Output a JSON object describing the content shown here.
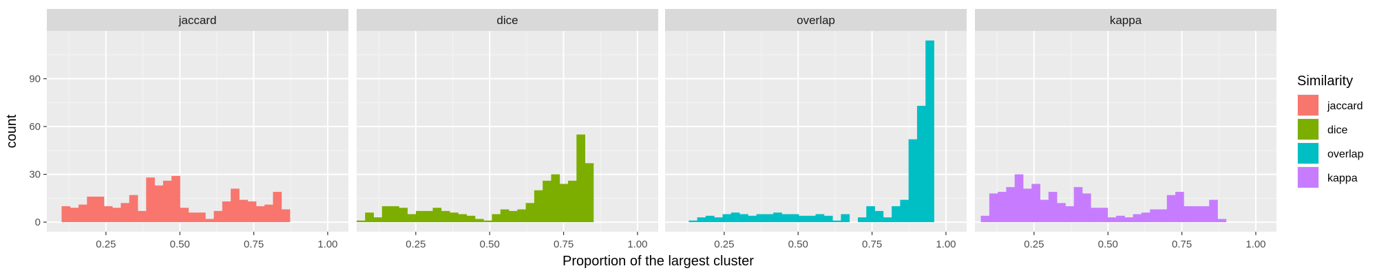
{
  "chart_data": {
    "type": "bar",
    "subtype": "histogram-facets",
    "xlabel": "Proportion of the largest cluster",
    "ylabel": "count",
    "xlim": [
      0.05,
      1.07
    ],
    "ylim": [
      -6,
      120
    ],
    "x_ticks": [
      0.25,
      0.5,
      0.75,
      1.0
    ],
    "x_tick_labels": [
      "0.25",
      "0.50",
      "0.75",
      "1.00"
    ],
    "y_ticks": [
      0,
      30,
      60,
      90
    ],
    "y_tick_labels": [
      "0",
      "30",
      "60",
      "90"
    ],
    "grid": true,
    "legend_position": "right",
    "legend_title": "Similarity",
    "panels": [
      {
        "name": "jaccard",
        "color": "#F8766D",
        "bin_start": 0.1,
        "bin_width": 0.0286,
        "counts": [
          10,
          9,
          11,
          16,
          16,
          10,
          9,
          12,
          17,
          7,
          28,
          23,
          26,
          29,
          9,
          6,
          6,
          2,
          7,
          13,
          21,
          14,
          13,
          10,
          11,
          19,
          8
        ]
      },
      {
        "name": "dice",
        "color": "#7CAE00",
        "bin_start": 0.05,
        "bin_width": 0.0286,
        "counts": [
          1,
          6,
          3,
          10,
          10,
          9,
          5,
          7,
          7,
          9,
          7,
          6,
          5,
          4,
          2,
          1,
          5,
          8,
          7,
          8,
          12,
          20,
          26,
          30,
          24,
          26,
          55,
          37
        ]
      },
      {
        "name": "overlap",
        "color": "#00BFC4",
        "bin_start": 0.13,
        "bin_width": 0.0286,
        "counts": [
          1,
          3,
          4,
          3,
          5,
          6,
          5,
          4,
          5,
          5,
          6,
          5,
          5,
          4,
          4,
          5,
          4,
          1,
          5,
          0,
          3,
          10,
          7,
          3,
          10,
          14,
          52,
          73,
          114
        ]
      },
      {
        "name": "kappa",
        "color": "#C77CFF",
        "bin_start": 0.07,
        "bin_width": 0.0286,
        "counts": [
          4,
          18,
          19,
          22,
          30,
          21,
          24,
          14,
          19,
          12,
          10,
          22,
          18,
          9,
          9,
          3,
          4,
          3,
          5,
          6,
          8,
          8,
          17,
          19,
          10,
          10,
          10,
          14,
          2
        ]
      }
    ]
  }
}
